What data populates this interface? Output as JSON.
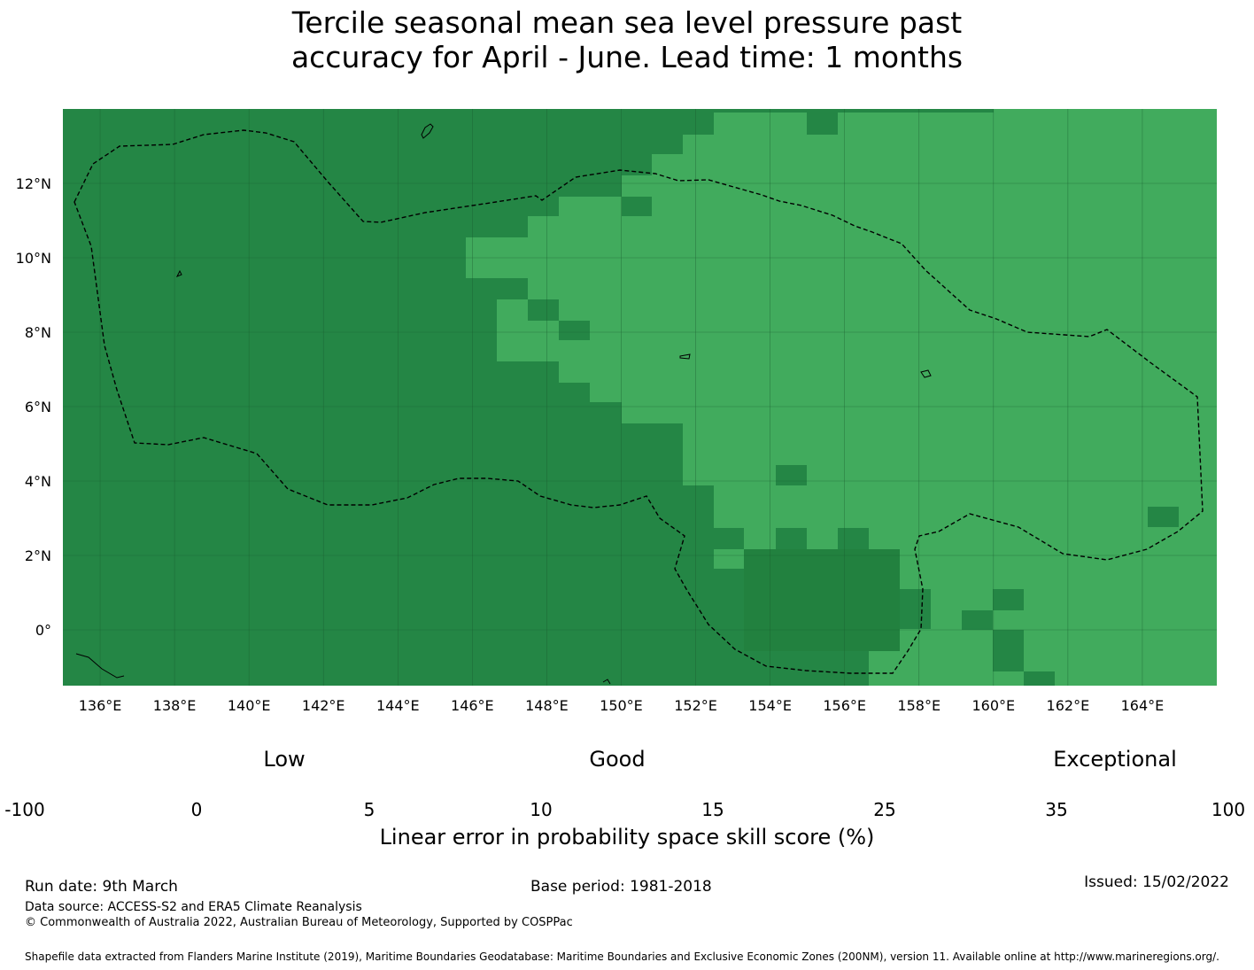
{
  "title": {
    "line1": "Tercile seasonal mean sea level pressure past",
    "line2": "accuracy for April - June. Lead time: 1 months"
  },
  "map": {
    "lon_range": [
      135,
      166
    ],
    "lat_range": [
      -1.5,
      14
    ],
    "x_ticks": [
      "136°E",
      "138°E",
      "140°E",
      "142°E",
      "144°E",
      "146°E",
      "148°E",
      "150°E",
      "152°E",
      "154°E",
      "156°E",
      "158°E",
      "160°E",
      "162°E",
      "164°E"
    ],
    "y_ticks": [
      "12°N",
      "10°N",
      "8°N",
      "6°N",
      "4°N",
      "2°N",
      "0°"
    ],
    "colors": {
      "high": "#248645",
      "mid": "#41ab5d",
      "boundary": "#000000"
    }
  },
  "colorbar": {
    "categories": [
      "Low",
      "Good",
      "Exceptional"
    ],
    "tick_labels": [
      "-100",
      "0",
      "5",
      "10",
      "15",
      "25",
      "35",
      "100"
    ],
    "colors": [
      "#ffffff",
      "#ffffcc",
      "#d9f0a3",
      "#addd8e",
      "#78c679",
      "#41ab5d",
      "#238443"
    ],
    "xlabel": "Linear error in probability space skill score (%)"
  },
  "footer": {
    "run_date": "Run date: 9th March",
    "base_period": "Base period: 1981-2018",
    "issued": "Issued: 15/02/2022",
    "data_source": "Data source: ACCESS-S2 and ERA5 Climate Reanalysis",
    "copyright": "© Commonwealth of Australia 2022, Australian Bureau of Meteorology, Supported by COSPPac",
    "shapefile": "Shapefile data extracted from Flanders Marine Institute (2019), Maritime Boundaries Geodatabase: Maritime Boundaries and Exclusive Economic Zones (200NM), version 11. Available online at http://www.marineregions.org/."
  }
}
